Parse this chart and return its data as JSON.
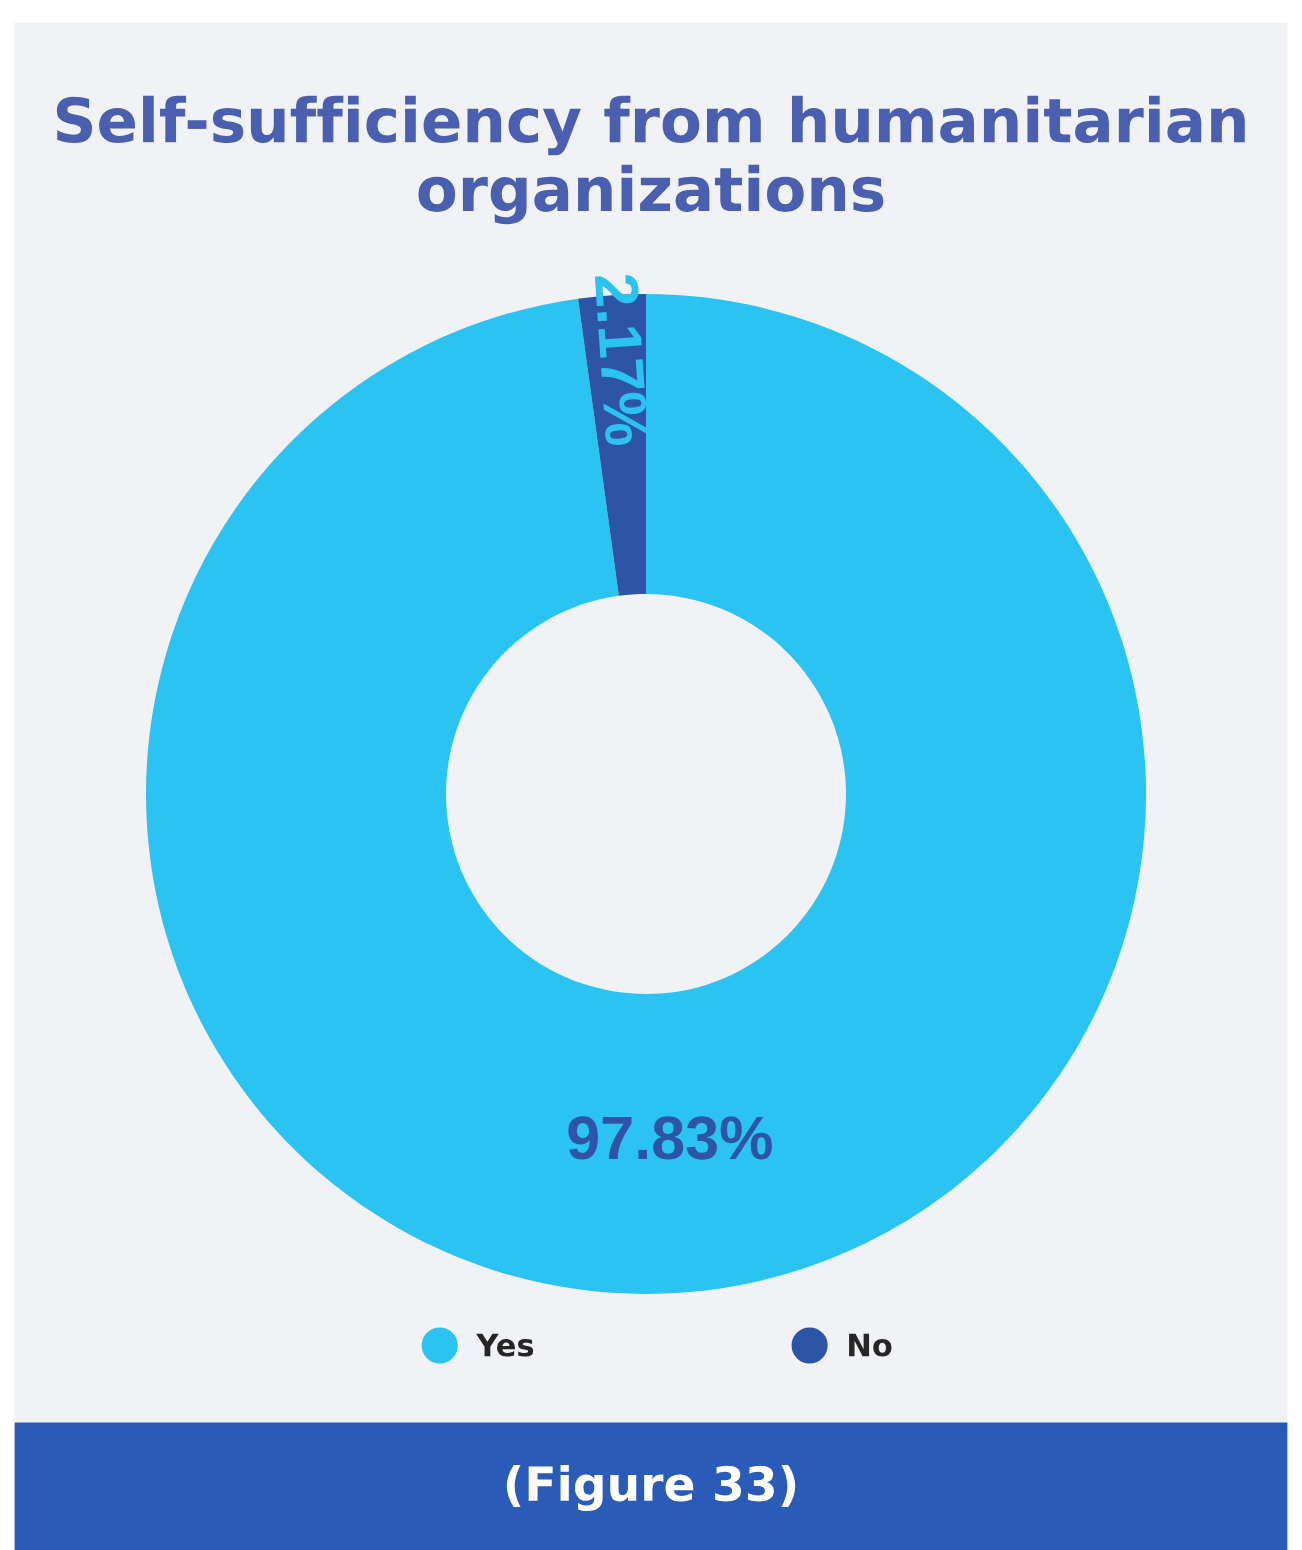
{
  "chart_data": {
    "type": "donut",
    "title": "Self-sufficiency from humanitarian organizations",
    "categories": [
      "Yes",
      "No"
    ],
    "values": [
      97.83,
      2.17
    ],
    "colors": [
      "#2bc4f2",
      "#2e55a5"
    ],
    "value_labels": [
      "97.83%",
      "2.17%"
    ],
    "legend": "bottom",
    "annotations": [
      "(Figure 33)"
    ]
  }
}
